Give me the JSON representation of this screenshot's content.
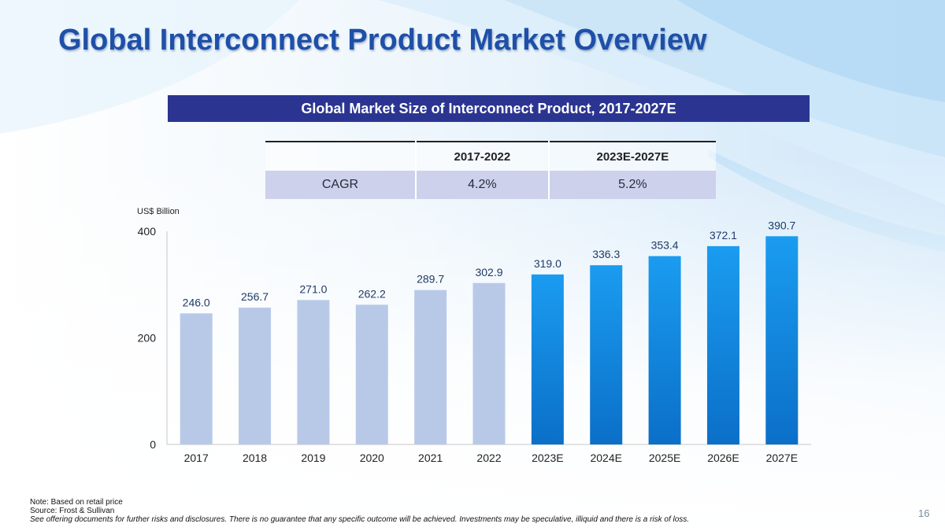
{
  "slide": {
    "title": "Global Interconnect Product Market Overview",
    "page_number": "16"
  },
  "table": {
    "title": "Global Market Size of Interconnect Product, 2017-2027E",
    "headers": [
      "",
      "2017-2022",
      "2023E-2027E"
    ],
    "row": {
      "label": "CAGR",
      "values": [
        "4.2%",
        "5.2%"
      ]
    }
  },
  "footnotes": {
    "note": "Note: Based on retail price",
    "source": "Source: Frost & Sullivan",
    "disclaimer": "See offering documents for further risks and disclosures. There is no guarantee that any specific outcome will be achieved. Investments may be speculative, illiquid and there is a risk of loss."
  },
  "colors": {
    "historical": "#b8c9e8",
    "forecast_top": "#1a9cf0",
    "forecast_bottom": "#0b6fc8",
    "title": "#1e50a8",
    "title_bar": "#2b3591"
  },
  "chart_data": {
    "type": "bar",
    "title": "Global Market Size of Interconnect Product, 2017-2027E",
    "ylabel": "US$ Billion",
    "xlabel": "",
    "categories": [
      "2017",
      "2018",
      "2019",
      "2020",
      "2021",
      "2022",
      "2023E",
      "2024E",
      "2025E",
      "2026E",
      "2027E"
    ],
    "values": [
      246.0,
      256.7,
      271.0,
      262.2,
      289.7,
      302.9,
      319.0,
      336.3,
      353.4,
      372.1,
      390.7
    ],
    "value_labels": [
      "246.0",
      "256.7",
      "271.0",
      "262.2",
      "289.7",
      "302.9",
      "319.0",
      "336.3",
      "353.4",
      "372.1",
      "390.7"
    ],
    "forecast": [
      false,
      false,
      false,
      false,
      false,
      false,
      true,
      true,
      true,
      true,
      true
    ],
    "yticks": [
      0,
      200,
      400
    ],
    "ylim": [
      0,
      400
    ],
    "grid": false
  }
}
